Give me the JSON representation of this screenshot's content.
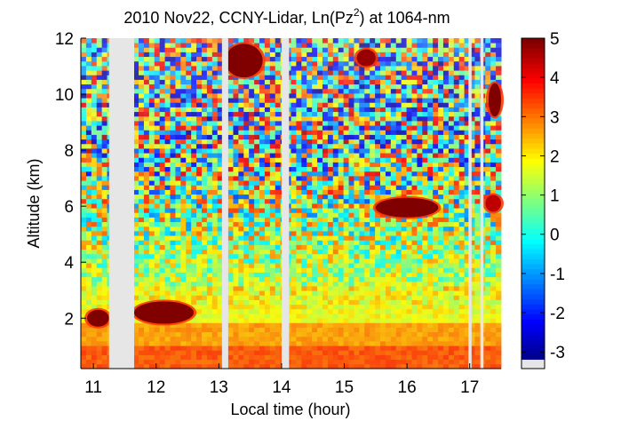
{
  "chart_data": {
    "type": "heatmap",
    "title": {
      "prefix": "2010 Nov22, CCNY-Lidar, Ln(Pz",
      "superscript": "2",
      "suffix": ") at 1064-nm"
    },
    "xlabel": "Local time (hour)",
    "ylabel": "Altitude (km)",
    "xlim": [
      10.8,
      17.5
    ],
    "ylim": [
      0.2,
      12
    ],
    "x_ticks": [
      11,
      12,
      13,
      14,
      15,
      16,
      17
    ],
    "x_tick_labels": [
      "11",
      "12",
      "13",
      "14",
      "15",
      "16",
      "17"
    ],
    "y_ticks": [
      2,
      4,
      6,
      8,
      10,
      12
    ],
    "y_tick_labels": [
      "2",
      "4",
      "6",
      "8",
      "10",
      "12"
    ],
    "colorbar": {
      "colormap": "jet",
      "range": [
        -3.2,
        5
      ],
      "ticks": [
        5,
        4,
        3,
        2,
        1,
        0,
        -1,
        -2,
        -3
      ],
      "tick_labels": [
        "5",
        "4",
        "3",
        "2",
        "1",
        "0",
        "-1",
        "-2",
        "-3"
      ],
      "missing_color": "#e6e6e6"
    },
    "data_gaps_hour": [
      [
        11.25,
        11.65
      ],
      [
        13.05,
        13.15
      ],
      [
        14.0,
        14.12
      ],
      [
        16.98,
        17.03
      ],
      [
        17.17,
        17.22
      ]
    ],
    "aerosol_layer_top_km": 1.8,
    "features": [
      {
        "name": "cirrus",
        "hour": [
          13.1,
          13.7
        ],
        "altitude_km": [
          10.6,
          11.8
        ],
        "value": 5
      },
      {
        "name": "cirrus",
        "hour": [
          15.2,
          15.5
        ],
        "altitude_km": [
          11.0,
          11.6
        ],
        "value": 4.8
      },
      {
        "name": "cirrus",
        "hour": [
          17.3,
          17.5
        ],
        "altitude_km": [
          9.2,
          10.4
        ],
        "value": 5
      },
      {
        "name": "mid-level cloud",
        "hour": [
          15.5,
          16.5
        ],
        "altitude_km": [
          5.6,
          6.3
        ],
        "value": 5
      },
      {
        "name": "mid-level cloud",
        "hour": [
          17.25,
          17.5
        ],
        "altitude_km": [
          5.8,
          6.4
        ],
        "value": 4.5
      },
      {
        "name": "low cloud",
        "hour": [
          10.9,
          11.25
        ],
        "altitude_km": [
          1.7,
          2.3
        ],
        "value": 5
      },
      {
        "name": "low cloud",
        "hour": [
          11.65,
          12.6
        ],
        "altitude_km": [
          1.8,
          2.6
        ],
        "value": 5
      }
    ],
    "colors": {
      "axis": "#000000",
      "background": "#ffffff"
    }
  }
}
